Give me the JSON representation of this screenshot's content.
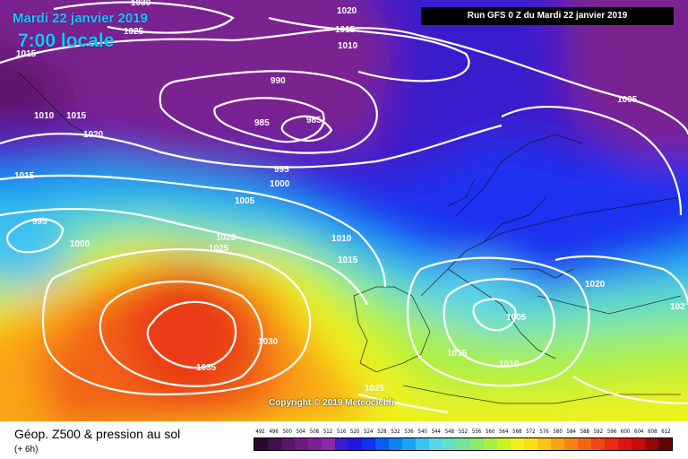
{
  "header": {
    "date": "Mardi 22 janvier 2019",
    "time": "7:00 locale",
    "run": "Run GFS 0 Z du Mardi 22 janvier 2019"
  },
  "copyright": "Copyright © 2019 Meteociel.fr",
  "legend": {
    "title": "Géop. Z500 & pression au sol",
    "subtitle": "(+ 6h)",
    "scale_values": [
      "492",
      "496",
      "500",
      "504",
      "508",
      "512",
      "516",
      "520",
      "524",
      "528",
      "532",
      "536",
      "540",
      "544",
      "548",
      "552",
      "556",
      "560",
      "564",
      "568",
      "572",
      "576",
      "580",
      "584",
      "588",
      "592",
      "596",
      "600",
      "604",
      "608",
      "612"
    ],
    "scale_colors": [
      "#2b0a2e",
      "#41104a",
      "#5a1766",
      "#6e1b7e",
      "#7e1f96",
      "#8a2aa8",
      "#3e1ad0",
      "#2216e6",
      "#1030f2",
      "#0a5cf6",
      "#0a84f2",
      "#18a6f4",
      "#3cc2f2",
      "#5ad6e6",
      "#64e0c4",
      "#74e49a",
      "#8aea6a",
      "#aaf040",
      "#ccf220",
      "#eef21a",
      "#fbe016",
      "#fcc414",
      "#faa414",
      "#f68414",
      "#f26414",
      "#ee4614",
      "#ea2a14",
      "#de1414",
      "#c80a0a",
      "#980606",
      "#600404"
    ]
  },
  "isobar_labels": [
    "1030",
    "1025",
    "1015",
    "1020",
    "1015",
    "1010",
    "1010",
    "1015",
    "1020",
    "990",
    "985",
    "985",
    "1015",
    "1005",
    "995",
    "1000",
    "1005",
    "995",
    "1000",
    "1020",
    "1025",
    "1010",
    "1015",
    "1005",
    "1015",
    "1010",
    "1020",
    "102",
    "1030",
    "1035",
    "1025",
    "1020"
  ],
  "map_icons": [
    "coastline-icon"
  ]
}
